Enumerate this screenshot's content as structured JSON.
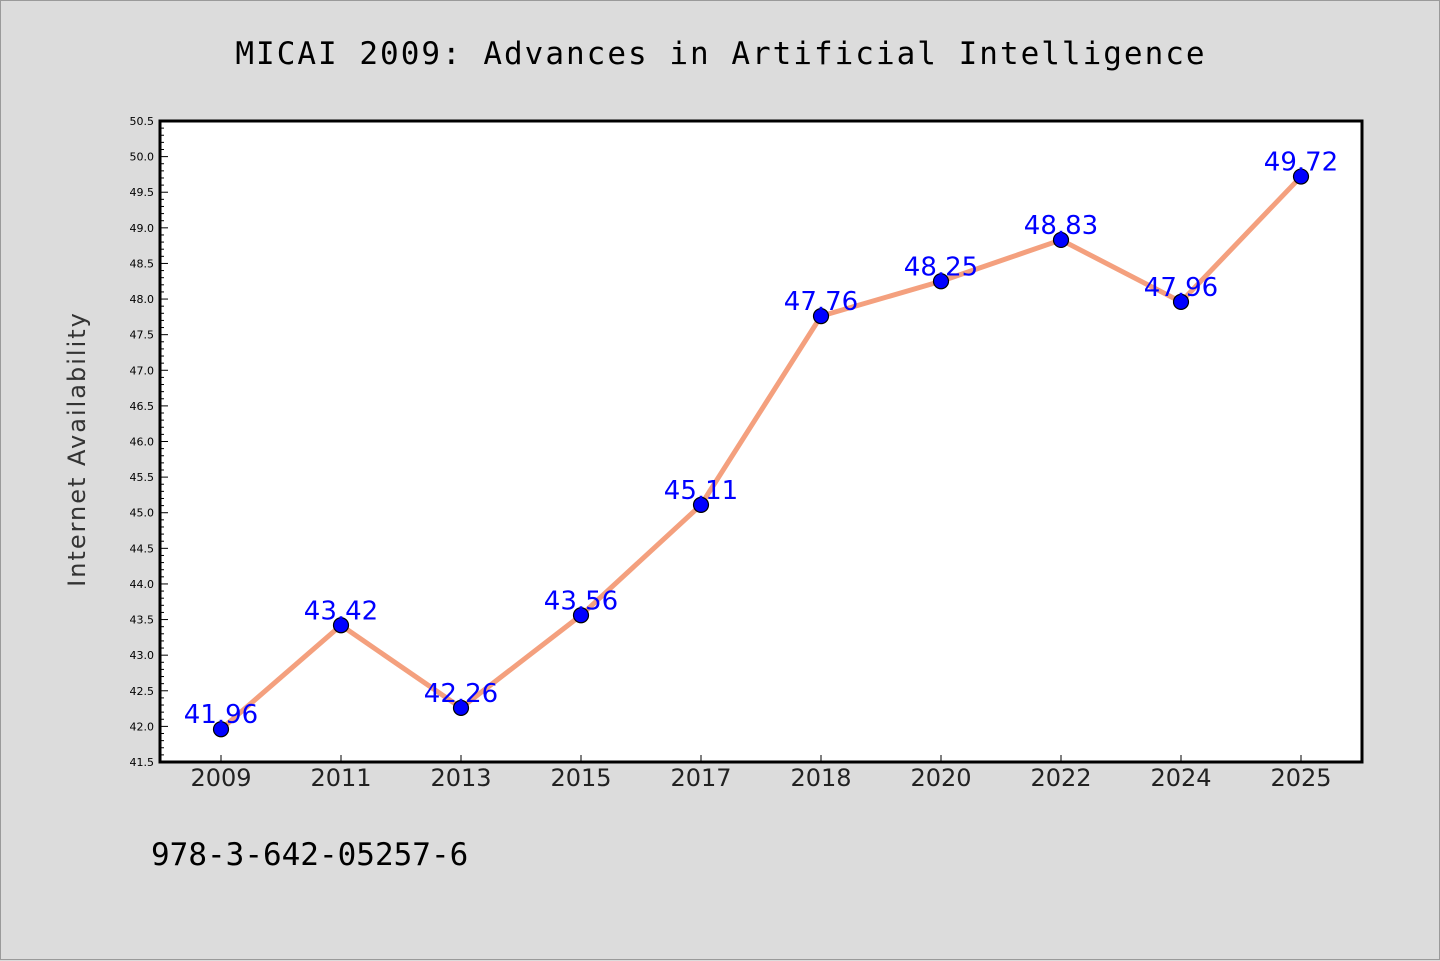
{
  "chart_data": {
    "type": "line",
    "title": "MICAI 2009: Advances in Artificial Intelligence",
    "ylabel": "Internet Availability",
    "xlabel": "",
    "categories": [
      "2009",
      "2011",
      "2013",
      "2015",
      "2017",
      "2018",
      "2020",
      "2022",
      "2024",
      "2025"
    ],
    "series": [
      {
        "values": [
          41.96,
          43.42,
          42.26,
          43.56,
          45.11,
          47.76,
          48.25,
          48.83,
          47.96,
          49.72
        ],
        "labels": [
          "41.96",
          "43.42",
          "42.26",
          "43.56",
          "45.11",
          "47.76",
          "48.25",
          "48.83",
          "47.96",
          "49.72"
        ]
      }
    ],
    "ylim": [
      41.5,
      50.5
    ],
    "yticks": [
      "41.5",
      "42.0",
      "42.5",
      "43.0",
      "43.5",
      "44.0",
      "44.5",
      "45.0",
      "45.5",
      "46.0",
      "46.5",
      "47.0",
      "47.5",
      "48.0",
      "48.5",
      "49.0",
      "49.5",
      "50.0",
      "50.5"
    ],
    "grid": false,
    "colors": {
      "line": "#f4a07e",
      "marker": "#0000ff",
      "label": "#0000ff",
      "plot_bg": "#ffffff",
      "page_bg": "#dcdcdc"
    }
  },
  "footer": {
    "isbn": "978-3-642-05257-6"
  }
}
